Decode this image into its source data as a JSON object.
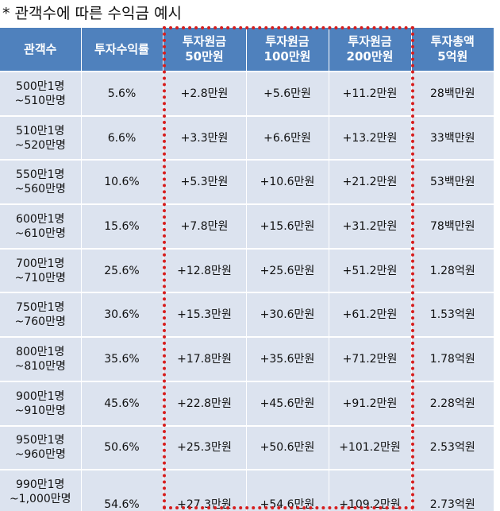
{
  "title": "* 관객수에 따른 수익금 예시",
  "columns": [
    [
      "관객수"
    ],
    [
      "투자수익률"
    ],
    [
      "투자원금",
      "50만원"
    ],
    [
      "투자원금",
      "100만원"
    ],
    [
      "투자원금",
      "200만원"
    ],
    [
      "투자총액",
      "5억원"
    ]
  ],
  "rows": [
    {
      "range": [
        "500만1명",
        "~510만명"
      ],
      "rate": "5.6%",
      "p50": "+2.8만원",
      "p100": "+5.6만원",
      "p200": "+11.2만원",
      "total": "28백만원"
    },
    {
      "range": [
        "510만1명",
        "~520만명"
      ],
      "rate": "6.6%",
      "p50": "+3.3만원",
      "p100": "+6.6만원",
      "p200": "+13.2만원",
      "total": "33백만원"
    },
    {
      "range": [
        "550만1명",
        "~560만명"
      ],
      "rate": "10.6%",
      "p50": "+5.3만원",
      "p100": "+10.6만원",
      "p200": "+21.2만원",
      "total": "53백만원"
    },
    {
      "range": [
        "600만1명",
        "~610만명"
      ],
      "rate": "15.6%",
      "p50": "+7.8만원",
      "p100": "+15.6만원",
      "p200": "+31.2만원",
      "total": "78백만원"
    },
    {
      "range": [
        "700만1명",
        "~710만명"
      ],
      "rate": "25.6%",
      "p50": "+12.8만원",
      "p100": "+25.6만원",
      "p200": "+51.2만원",
      "total": "1.28억원"
    },
    {
      "range": [
        "750만1명",
        "~760만명"
      ],
      "rate": "30.6%",
      "p50": "+15.3만원",
      "p100": "+30.6만원",
      "p200": "+61.2만원",
      "total": "1.53억원"
    },
    {
      "range": [
        "800만1명",
        "~810만명"
      ],
      "rate": "35.6%",
      "p50": "+17.8만원",
      "p100": "+35.6만원",
      "p200": "+71.2만원",
      "total": "1.78억원"
    },
    {
      "range": [
        "900만1명",
        "~910만명"
      ],
      "rate": "45.6%",
      "p50": "+22.8만원",
      "p100": "+45.6만원",
      "p200": "+91.2만원",
      "total": "2.28억원"
    },
    {
      "range": [
        "950만1명",
        "~960만명"
      ],
      "rate": "50.6%",
      "p50": "+25.3만원",
      "p100": "+50.6만원",
      "p200": "+101.2만원",
      "total": "2.53억원"
    },
    {
      "range": [
        "990만1명",
        "~1,000만명"
      ],
      "rate": "54.6%",
      "p50": "+27.3만원",
      "p100": "+54.6만원",
      "p200": "+109.2만원",
      "total": "2.73억원"
    }
  ],
  "colors": {
    "header_bg": "#4f81bd",
    "header_text": "#ffffff",
    "cell_bg": "#dce3ef",
    "highlight_border": "#d61e1e"
  }
}
